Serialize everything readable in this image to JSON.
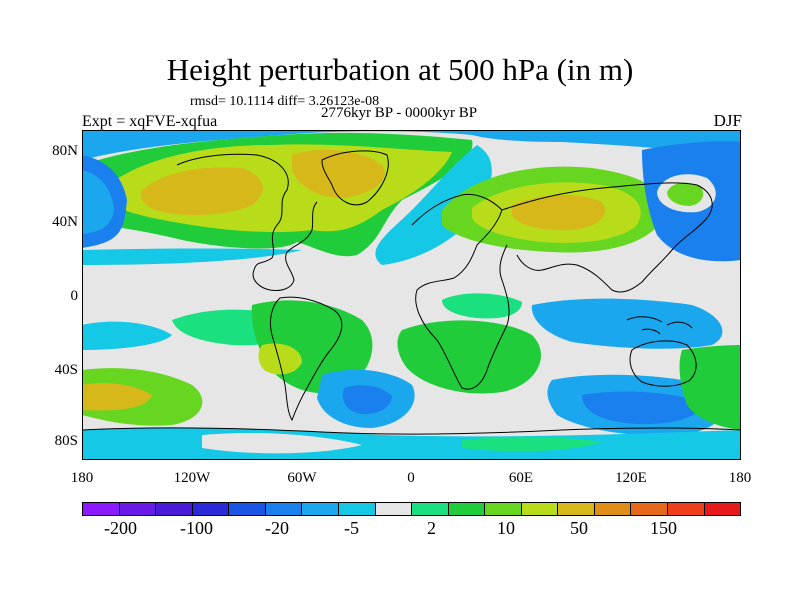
{
  "title": "Height perturbation at 500 hPa (in m)",
  "stats": "rmsd= 10.1114 diff= 3.26123e-08",
  "period": "2776kyr BP - 0000kyr BP",
  "experiment": "Expt = xqFVE-xqfua",
  "season": "DJF",
  "y_ticks": [
    "80N",
    "40N",
    "0",
    "40S",
    "80S"
  ],
  "x_ticks": [
    "180",
    "120W",
    "60W",
    "0",
    "60E",
    "120E",
    "180"
  ],
  "colorbar": {
    "colors": [
      "#8c1aff",
      "#6a1ae6",
      "#4b1ad9",
      "#2a2ad9",
      "#1a55e6",
      "#1a80ee",
      "#1aa7ee",
      "#15c8e6",
      "#e6e6e6",
      "#1ae07f",
      "#20cc3a",
      "#66d620",
      "#b8dc1a",
      "#d6b81a",
      "#e08d1a",
      "#e6681a",
      "#ee3f1a",
      "#e61a1a"
    ],
    "labels": [
      "-200",
      "-100",
      "-20",
      "-5",
      "2",
      "10",
      "50",
      "150"
    ]
  }
}
